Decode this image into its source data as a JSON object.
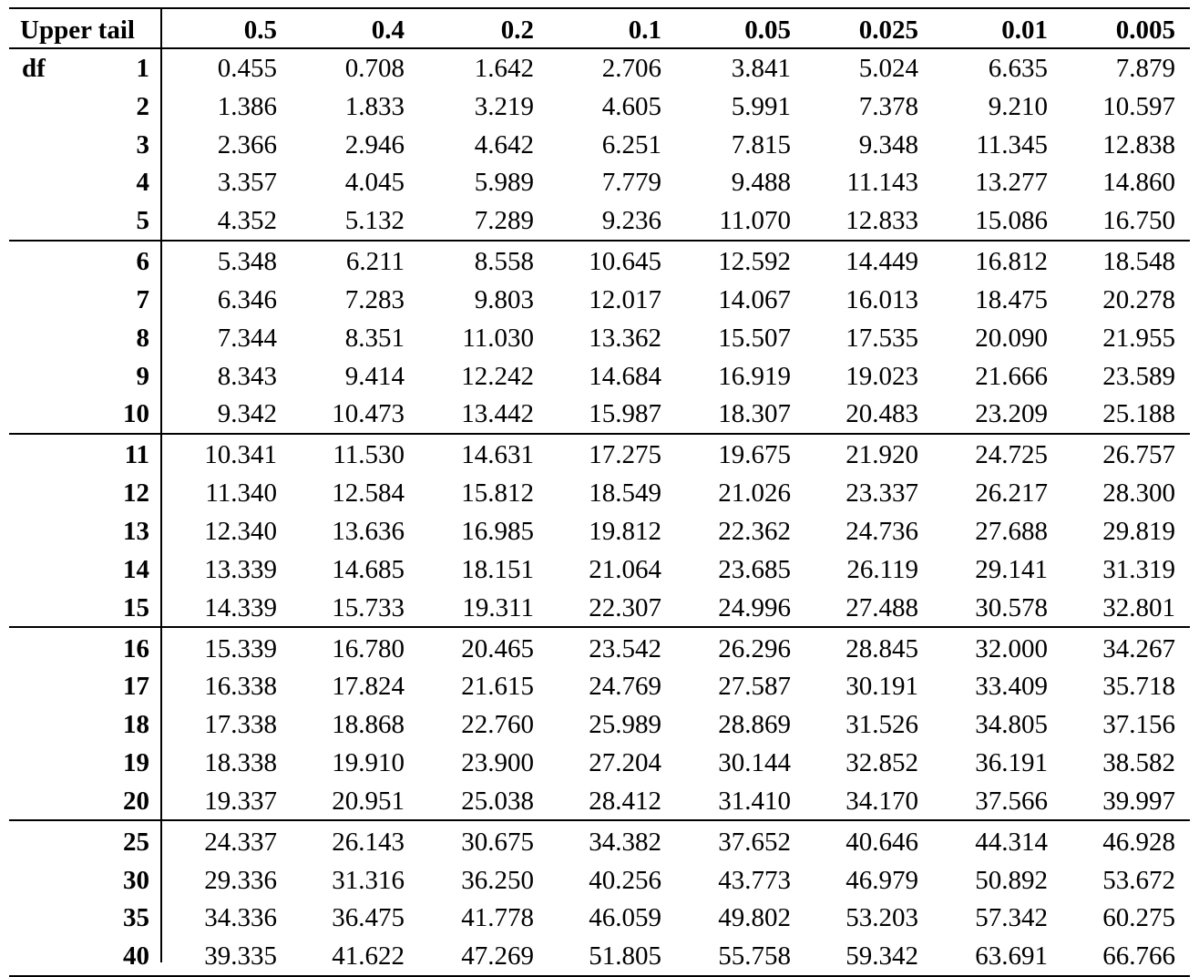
{
  "table": {
    "header_label": "Upper tail",
    "df_label": "df",
    "columns": [
      "0.5",
      "0.4",
      "0.2",
      "0.1",
      "0.05",
      "0.025",
      "0.01",
      "0.005"
    ],
    "rows": [
      {
        "df": "1",
        "values": [
          "0.455",
          "0.708",
          "1.642",
          "2.706",
          "3.841",
          "5.024",
          "6.635",
          "7.879"
        ]
      },
      {
        "df": "2",
        "values": [
          "1.386",
          "1.833",
          "3.219",
          "4.605",
          "5.991",
          "7.378",
          "9.210",
          "10.597"
        ]
      },
      {
        "df": "3",
        "values": [
          "2.366",
          "2.946",
          "4.642",
          "6.251",
          "7.815",
          "9.348",
          "11.345",
          "12.838"
        ]
      },
      {
        "df": "4",
        "values": [
          "3.357",
          "4.045",
          "5.989",
          "7.779",
          "9.488",
          "11.143",
          "13.277",
          "14.860"
        ]
      },
      {
        "df": "5",
        "values": [
          "4.352",
          "5.132",
          "7.289",
          "9.236",
          "11.070",
          "12.833",
          "15.086",
          "16.750"
        ]
      },
      {
        "df": "6",
        "values": [
          "5.348",
          "6.211",
          "8.558",
          "10.645",
          "12.592",
          "14.449",
          "16.812",
          "18.548"
        ]
      },
      {
        "df": "7",
        "values": [
          "6.346",
          "7.283",
          "9.803",
          "12.017",
          "14.067",
          "16.013",
          "18.475",
          "20.278"
        ]
      },
      {
        "df": "8",
        "values": [
          "7.344",
          "8.351",
          "11.030",
          "13.362",
          "15.507",
          "17.535",
          "20.090",
          "21.955"
        ]
      },
      {
        "df": "9",
        "values": [
          "8.343",
          "9.414",
          "12.242",
          "14.684",
          "16.919",
          "19.023",
          "21.666",
          "23.589"
        ]
      },
      {
        "df": "10",
        "values": [
          "9.342",
          "10.473",
          "13.442",
          "15.987",
          "18.307",
          "20.483",
          "23.209",
          "25.188"
        ]
      },
      {
        "df": "11",
        "values": [
          "10.341",
          "11.530",
          "14.631",
          "17.275",
          "19.675",
          "21.920",
          "24.725",
          "26.757"
        ]
      },
      {
        "df": "12",
        "values": [
          "11.340",
          "12.584",
          "15.812",
          "18.549",
          "21.026",
          "23.337",
          "26.217",
          "28.300"
        ]
      },
      {
        "df": "13",
        "values": [
          "12.340",
          "13.636",
          "16.985",
          "19.812",
          "22.362",
          "24.736",
          "27.688",
          "29.819"
        ]
      },
      {
        "df": "14",
        "values": [
          "13.339",
          "14.685",
          "18.151",
          "21.064",
          "23.685",
          "26.119",
          "29.141",
          "31.319"
        ]
      },
      {
        "df": "15",
        "values": [
          "14.339",
          "15.733",
          "19.311",
          "22.307",
          "24.996",
          "27.488",
          "30.578",
          "32.801"
        ]
      },
      {
        "df": "16",
        "values": [
          "15.339",
          "16.780",
          "20.465",
          "23.542",
          "26.296",
          "28.845",
          "32.000",
          "34.267"
        ]
      },
      {
        "df": "17",
        "values": [
          "16.338",
          "17.824",
          "21.615",
          "24.769",
          "27.587",
          "30.191",
          "33.409",
          "35.718"
        ]
      },
      {
        "df": "18",
        "values": [
          "17.338",
          "18.868",
          "22.760",
          "25.989",
          "28.869",
          "31.526",
          "34.805",
          "37.156"
        ]
      },
      {
        "df": "19",
        "values": [
          "18.338",
          "19.910",
          "23.900",
          "27.204",
          "30.144",
          "32.852",
          "36.191",
          "38.582"
        ]
      },
      {
        "df": "20",
        "values": [
          "19.337",
          "20.951",
          "25.038",
          "28.412",
          "31.410",
          "34.170",
          "37.566",
          "39.997"
        ]
      },
      {
        "df": "25",
        "values": [
          "24.337",
          "26.143",
          "30.675",
          "34.382",
          "37.652",
          "40.646",
          "44.314",
          "46.928"
        ]
      },
      {
        "df": "30",
        "values": [
          "29.336",
          "31.316",
          "36.250",
          "40.256",
          "43.773",
          "46.979",
          "50.892",
          "53.672"
        ]
      },
      {
        "df": "35",
        "values": [
          "34.336",
          "36.475",
          "41.778",
          "46.059",
          "49.802",
          "53.203",
          "57.342",
          "60.275"
        ]
      },
      {
        "df": "40",
        "values": [
          "39.335",
          "41.622",
          "47.269",
          "51.805",
          "55.758",
          "59.342",
          "63.691",
          "66.766"
        ]
      }
    ]
  }
}
